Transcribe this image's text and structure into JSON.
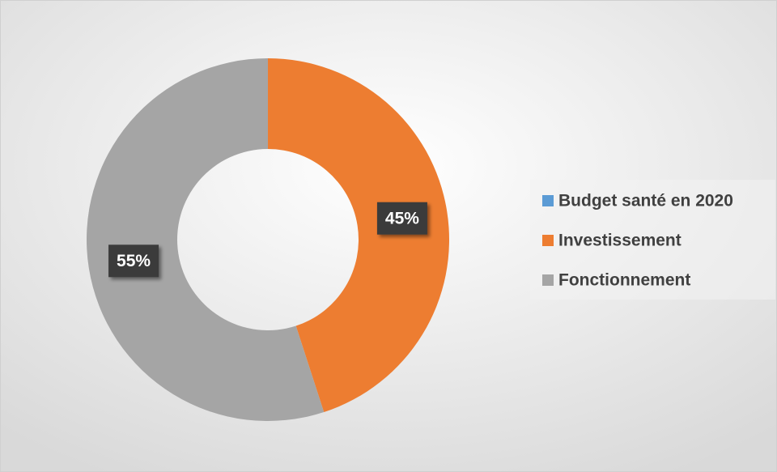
{
  "chart_data": {
    "type": "donut",
    "categories": [
      "Budget santé en 2020",
      "Investissement",
      "Fonctionnement"
    ],
    "values": [
      0,
      45,
      55
    ],
    "value_labels": [
      null,
      "45%",
      "55%"
    ],
    "colors": [
      "#5b9bd5",
      "#ed7d31",
      "#a5a5a5"
    ],
    "legend": "right"
  }
}
